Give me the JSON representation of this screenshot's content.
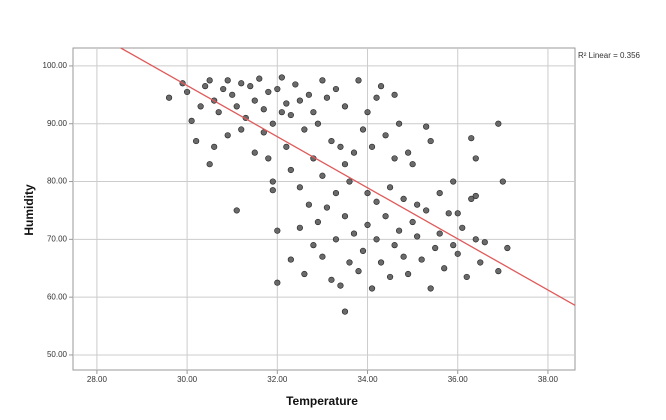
{
  "chart_data": {
    "type": "scatter",
    "x_label": "Temperature",
    "y_label": "Humidity",
    "annotation": "R² Linear = 0.356",
    "x": [
      29.6,
      29.9,
      30.0,
      30.1,
      30.3,
      30.4,
      30.5,
      30.6,
      30.7,
      30.8,
      30.9,
      31.0,
      31.1,
      31.2,
      31.3,
      31.4,
      31.5,
      31.6,
      31.7,
      31.8,
      31.9,
      32.0,
      32.1,
      32.2,
      32.3,
      32.4,
      32.5,
      32.6,
      32.7,
      32.8,
      33.0,
      33.1,
      33.3,
      33.5,
      33.8,
      34.0,
      34.3,
      34.6,
      34.7,
      30.2,
      30.5,
      30.6,
      30.9,
      31.1,
      31.2,
      31.5,
      31.8,
      31.9,
      32.0,
      32.0,
      31.9,
      32.2,
      32.3,
      32.5,
      32.7,
      32.8,
      33.0,
      33.2,
      33.3,
      33.5,
      33.7,
      33.9,
      34.1,
      34.4,
      34.6,
      34.9,
      35.3,
      35.4,
      36.3,
      36.4,
      36.9,
      37.0,
      32.3,
      32.5,
      32.6,
      32.8,
      32.9,
      33.0,
      33.1,
      33.2,
      33.3,
      33.4,
      33.5,
      33.5,
      33.6,
      33.7,
      33.8,
      33.9,
      34.0,
      34.1,
      34.2,
      34.3,
      34.4,
      34.5,
      34.6,
      34.7,
      34.8,
      34.9,
      35.0,
      35.1,
      35.2,
      35.3,
      35.4,
      35.5,
      35.6,
      35.7,
      35.8,
      35.9,
      36.0,
      36.1,
      36.2,
      36.3,
      36.4,
      36.5,
      36.6,
      36.9,
      37.1,
      33.6,
      34.0,
      34.2,
      34.5,
      34.8,
      35.1,
      35.6,
      35.9,
      36.4,
      36.0,
      31.7,
      32.1,
      32.9,
      33.4,
      34.2,
      35.0
    ],
    "values": [
      94.5,
      97,
      95.5,
      90.5,
      93,
      96.5,
      97.5,
      94,
      92,
      96,
      97.5,
      95,
      93,
      97,
      91,
      96.5,
      94,
      97.8,
      92.5,
      95.5,
      90,
      96,
      98,
      93.5,
      91.5,
      96.8,
      94,
      89,
      95,
      92,
      97.5,
      94.5,
      96,
      93,
      97.5,
      92,
      96.5,
      95,
      90,
      87,
      83,
      86,
      88,
      75,
      89,
      85,
      84,
      80,
      71.5,
      62.5,
      78.5,
      86,
      82,
      79,
      76,
      84,
      81,
      87,
      78,
      83,
      85,
      89,
      86,
      88,
      84,
      85,
      89.5,
      87,
      87.5,
      84,
      90,
      80,
      66.5,
      72,
      64,
      69,
      73,
      67,
      75.5,
      63,
      70,
      62,
      57.5,
      74,
      66,
      71,
      64.5,
      68,
      72.5,
      61.5,
      70,
      66,
      74,
      63.5,
      69,
      71.5,
      67,
      64,
      73,
      70.5,
      66.5,
      75,
      61.5,
      68.5,
      71,
      65,
      74.5,
      69,
      67.5,
      72,
      63.5,
      77,
      70,
      66,
      69.5,
      64.5,
      68.5,
      80,
      78,
      76.5,
      79,
      77,
      76,
      78,
      80,
      77.5,
      74.5,
      88.5,
      92,
      90,
      86,
      94.5,
      83
    ],
    "color": "#5a5a5a",
    "fit": {
      "slope": -4.42,
      "intercept": 229.2,
      "color": "#e05a5a"
    },
    "xlim": [
      27.47,
      38.6
    ],
    "ylim": [
      47.4,
      103.1
    ],
    "xticks": [
      {
        "value": 28,
        "label": "28.00"
      },
      {
        "value": 30,
        "label": "30.00"
      },
      {
        "value": 32,
        "label": "32.00"
      },
      {
        "value": 34,
        "label": "34.00"
      },
      {
        "value": 36,
        "label": "36.00"
      },
      {
        "value": 38,
        "label": "38.00"
      }
    ],
    "yticks": [
      {
        "value": 50,
        "label": "50.00"
      },
      {
        "value": 60,
        "label": "60.00"
      },
      {
        "value": 70,
        "label": "70.00"
      },
      {
        "value": 80,
        "label": "80.00"
      },
      {
        "value": 90,
        "label": "90.00"
      },
      {
        "value": 100,
        "label": "100.00"
      }
    ],
    "grid": true
  }
}
